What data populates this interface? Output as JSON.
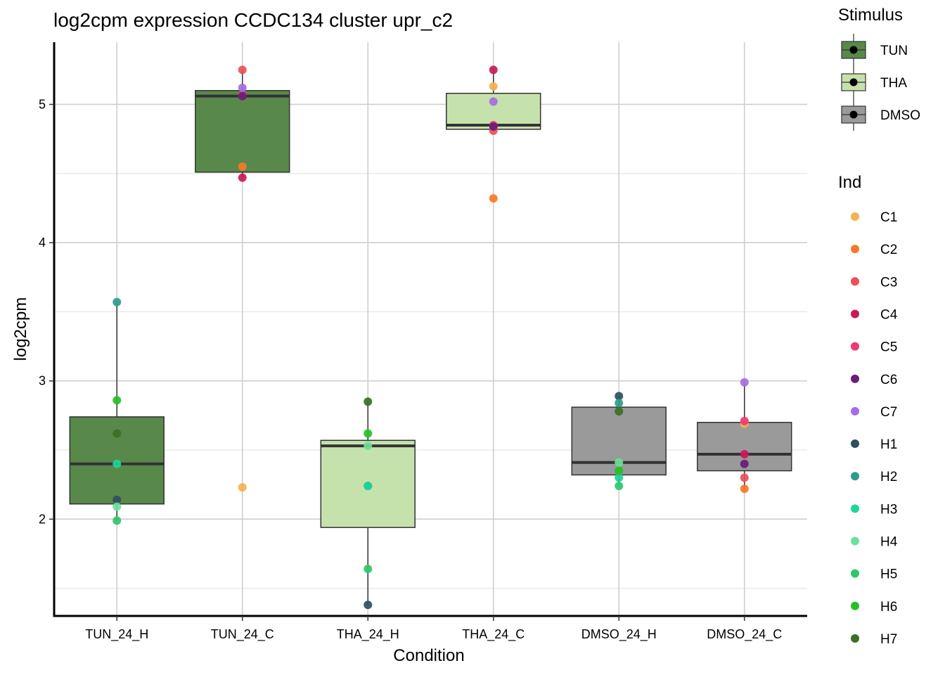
{
  "chart_data": {
    "type": "boxplot",
    "title": "log2cpm expression CCDC134 cluster upr_c2",
    "xlabel": "Condition",
    "ylabel": "log2cpm",
    "ylim": [
      1.3,
      5.45
    ],
    "yticks": [
      2,
      3,
      4,
      5
    ],
    "grid": true,
    "categories": [
      "TUN_24_H",
      "TUN_24_C",
      "THA_24_H",
      "THA_24_C",
      "DMSO_24_H",
      "DMSO_24_C"
    ],
    "boxes": [
      {
        "condition": "TUN_24_H",
        "stimulus": "TUN",
        "q1": 2.11,
        "median": 2.4,
        "q3": 2.74,
        "whisker_low": 1.99,
        "whisker_high": 3.57
      },
      {
        "condition": "TUN_24_C",
        "stimulus": "TUN",
        "q1": 4.51,
        "median": 5.06,
        "q3": 5.1,
        "whisker_low": 4.47,
        "whisker_high": 5.25
      },
      {
        "condition": "THA_24_H",
        "stimulus": "THA",
        "q1": 1.94,
        "median": 2.53,
        "q3": 2.57,
        "whisker_low": 1.38,
        "whisker_high": 2.85
      },
      {
        "condition": "THA_24_C",
        "stimulus": "THA",
        "q1": 4.82,
        "median": 4.85,
        "q3": 5.08,
        "whisker_low": 4.81,
        "whisker_high": 5.25
      },
      {
        "condition": "DMSO_24_H",
        "stimulus": "DMSO",
        "q1": 2.32,
        "median": 2.41,
        "q3": 2.81,
        "whisker_low": 2.24,
        "whisker_high": 2.89
      },
      {
        "condition": "DMSO_24_C",
        "stimulus": "DMSO",
        "q1": 2.35,
        "median": 2.47,
        "q3": 2.7,
        "whisker_low": 2.22,
        "whisker_high": 2.99
      }
    ],
    "points": [
      {
        "condition": "TUN_24_H",
        "ind": "H1",
        "value": 2.14
      },
      {
        "condition": "TUN_24_H",
        "ind": "H2",
        "value": 3.57
      },
      {
        "condition": "TUN_24_H",
        "ind": "H3",
        "value": 2.4
      },
      {
        "condition": "TUN_24_H",
        "ind": "H4",
        "value": 2.09
      },
      {
        "condition": "TUN_24_H",
        "ind": "H5",
        "value": 1.99
      },
      {
        "condition": "TUN_24_H",
        "ind": "H6",
        "value": 2.86
      },
      {
        "condition": "TUN_24_H",
        "ind": "H7",
        "value": 2.62
      },
      {
        "condition": "TUN_24_C",
        "ind": "C1",
        "value": 2.23
      },
      {
        "condition": "TUN_24_C",
        "ind": "C2",
        "value": 4.55
      },
      {
        "condition": "TUN_24_C",
        "ind": "C3",
        "value": 5.25
      },
      {
        "condition": "TUN_24_C",
        "ind": "C4",
        "value": 4.47
      },
      {
        "condition": "TUN_24_C",
        "ind": "C5",
        "value": 5.07
      },
      {
        "condition": "TUN_24_C",
        "ind": "C6",
        "value": 5.06
      },
      {
        "condition": "TUN_24_C",
        "ind": "C7",
        "value": 5.12
      },
      {
        "condition": "THA_24_H",
        "ind": "H1",
        "value": 1.38
      },
      {
        "condition": "THA_24_H",
        "ind": "H2",
        "value": 2.24
      },
      {
        "condition": "THA_24_H",
        "ind": "H3",
        "value": 2.24
      },
      {
        "condition": "THA_24_H",
        "ind": "H4",
        "value": 2.53
      },
      {
        "condition": "THA_24_H",
        "ind": "H5",
        "value": 1.64
      },
      {
        "condition": "THA_24_H",
        "ind": "H6",
        "value": 2.62
      },
      {
        "condition": "THA_24_H",
        "ind": "H7",
        "value": 2.85
      },
      {
        "condition": "THA_24_C",
        "ind": "C1",
        "value": 5.13
      },
      {
        "condition": "THA_24_C",
        "ind": "C2",
        "value": 4.32
      },
      {
        "condition": "THA_24_C",
        "ind": "C3",
        "value": 4.81
      },
      {
        "condition": "THA_24_C",
        "ind": "C4",
        "value": 5.25
      },
      {
        "condition": "THA_24_C",
        "ind": "C5",
        "value": 4.85
      },
      {
        "condition": "THA_24_C",
        "ind": "C6",
        "value": 4.84
      },
      {
        "condition": "THA_24_C",
        "ind": "C7",
        "value": 5.02
      },
      {
        "condition": "DMSO_24_H",
        "ind": "H1",
        "value": 2.89
      },
      {
        "condition": "DMSO_24_H",
        "ind": "H2",
        "value": 2.84
      },
      {
        "condition": "DMSO_24_H",
        "ind": "H3",
        "value": 2.3
      },
      {
        "condition": "DMSO_24_H",
        "ind": "H4",
        "value": 2.41
      },
      {
        "condition": "DMSO_24_H",
        "ind": "H5",
        "value": 2.24
      },
      {
        "condition": "DMSO_24_H",
        "ind": "H6",
        "value": 2.35
      },
      {
        "condition": "DMSO_24_H",
        "ind": "H7",
        "value": 2.78
      },
      {
        "condition": "DMSO_24_C",
        "ind": "C1",
        "value": 2.69
      },
      {
        "condition": "DMSO_24_C",
        "ind": "C2",
        "value": 2.22
      },
      {
        "condition": "DMSO_24_C",
        "ind": "C3",
        "value": 2.3
      },
      {
        "condition": "DMSO_24_C",
        "ind": "C4",
        "value": 2.47
      },
      {
        "condition": "DMSO_24_C",
        "ind": "C5",
        "value": 2.71
      },
      {
        "condition": "DMSO_24_C",
        "ind": "C6",
        "value": 2.4
      },
      {
        "condition": "DMSO_24_C",
        "ind": "C7",
        "value": 2.99
      }
    ],
    "legend_stimulus": {
      "title": "Stimulus",
      "entries": [
        {
          "label": "TUN",
          "color": "#58894a"
        },
        {
          "label": "THA",
          "color": "#c6e2ac"
        },
        {
          "label": "DMSO",
          "color": "#9a9a9a"
        }
      ]
    },
    "legend_ind": {
      "title": "Ind",
      "entries": [
        {
          "label": "C1",
          "color": "#f5b04f"
        },
        {
          "label": "C2",
          "color": "#f47a25"
        },
        {
          "label": "C3",
          "color": "#ec4f59"
        },
        {
          "label": "C4",
          "color": "#c9195a"
        },
        {
          "label": "C5",
          "color": "#ee3a72"
        },
        {
          "label": "C6",
          "color": "#6a1b7a"
        },
        {
          "label": "C7",
          "color": "#a36ee0"
        },
        {
          "label": "H1",
          "color": "#2f4e5e"
        },
        {
          "label": "H2",
          "color": "#2e9c8c"
        },
        {
          "label": "H3",
          "color": "#1fd49a"
        },
        {
          "label": "H4",
          "color": "#6ce09a"
        },
        {
          "label": "H5",
          "color": "#2dc76a"
        },
        {
          "label": "H6",
          "color": "#25c025"
        },
        {
          "label": "H7",
          "color": "#3c6e25"
        }
      ]
    }
  }
}
